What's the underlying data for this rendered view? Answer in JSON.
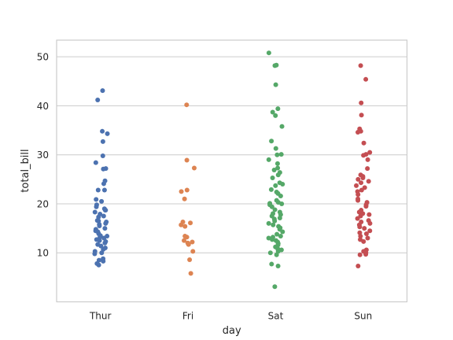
{
  "chart_data": {
    "type": "scatter",
    "subtype": "stripplot",
    "xlabel": "day",
    "ylabel": "total_bill",
    "categories": [
      "Thur",
      "Fri",
      "Sat",
      "Sun"
    ],
    "ylim": [
      0,
      53.4
    ],
    "yticks": [
      10,
      20,
      30,
      40,
      50
    ],
    "grid": "horizontal",
    "colors": [
      "#4c72b0",
      "#dd8452",
      "#55a868",
      "#c44e52"
    ],
    "series": [
      {
        "category": "Thur",
        "values": [
          43.1,
          41.2,
          34.8,
          34.3,
          32.7,
          29.8,
          28.4,
          27.2,
          27.1,
          24.7,
          24.1,
          22.8,
          22.8,
          20.9,
          20.5,
          19.8,
          19.4,
          19.0,
          18.7,
          18.7,
          18.3,
          17.9,
          17.5,
          17.3,
          16.6,
          16.5,
          16.3,
          16.0,
          15.8,
          15.5,
          15.0,
          14.8,
          14.5,
          14.3,
          13.9,
          13.5,
          13.4,
          13.2,
          13.0,
          12.7,
          12.5,
          12.3,
          12.0,
          11.7,
          11.4,
          11.0,
          10.7,
          10.3,
          10.0,
          9.8,
          8.8,
          8.5,
          8.3,
          7.8,
          7.5
        ]
      },
      {
        "category": "Fri",
        "values": [
          40.2,
          28.9,
          27.3,
          22.8,
          22.5,
          21.0,
          16.3,
          16.1,
          15.7,
          15.4,
          13.4,
          13.2,
          12.5,
          12.2,
          12.0,
          11.7,
          10.3,
          8.6,
          5.8
        ]
      },
      {
        "category": "Sat",
        "values": [
          50.8,
          48.3,
          48.2,
          44.3,
          39.4,
          38.7,
          38.0,
          35.8,
          32.8,
          31.3,
          30.1,
          30.0,
          29.0,
          28.2,
          27.3,
          26.9,
          26.4,
          25.9,
          25.3,
          24.3,
          24.0,
          23.7,
          22.9,
          22.4,
          22.1,
          21.6,
          20.7,
          20.3,
          20.1,
          20.0,
          19.8,
          19.4,
          18.8,
          18.3,
          18.0,
          17.8,
          17.5,
          17.1,
          16.9,
          16.5,
          16.0,
          15.7,
          15.4,
          15.1,
          14.8,
          14.3,
          13.8,
          13.4,
          13.2,
          13.0,
          12.7,
          12.5,
          12.2,
          11.9,
          11.6,
          11.2,
          10.8,
          10.6,
          10.3,
          10.0,
          9.6,
          7.7,
          7.3,
          3.1
        ]
      },
      {
        "category": "Sun",
        "values": [
          48.2,
          45.4,
          40.6,
          38.1,
          35.3,
          34.8,
          34.6,
          32.4,
          30.5,
          30.1,
          29.9,
          29.0,
          27.2,
          25.9,
          25.6,
          25.3,
          25.0,
          24.6,
          24.3,
          23.7,
          23.3,
          22.8,
          22.5,
          21.9,
          21.0,
          20.7,
          20.3,
          19.8,
          19.5,
          18.7,
          18.3,
          18.0,
          17.8,
          17.5,
          17.0,
          16.6,
          16.3,
          16.0,
          15.7,
          15.3,
          15.0,
          14.5,
          14.1,
          13.9,
          13.4,
          13.0,
          12.7,
          12.3,
          10.6,
          10.3,
          10.0,
          9.7,
          9.6,
          7.3
        ]
      }
    ]
  }
}
